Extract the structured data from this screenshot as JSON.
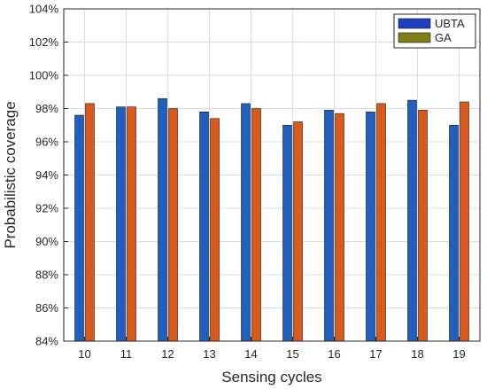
{
  "chart_data": {
    "type": "bar",
    "title": "",
    "xlabel": "Sensing cycles",
    "ylabel": "Probabilistic coverage",
    "categories": [
      "10",
      "11",
      "12",
      "13",
      "14",
      "15",
      "16",
      "17",
      "18",
      "19"
    ],
    "series": [
      {
        "name": "UBTA",
        "values": [
          97.6,
          98.1,
          98.6,
          97.8,
          98.3,
          97.0,
          97.9,
          97.8,
          98.5,
          97.0
        ],
        "color": "#1f5fbf"
      },
      {
        "name": "GA",
        "values": [
          98.3,
          98.1,
          98.0,
          97.4,
          98.0,
          97.2,
          97.7,
          98.3,
          97.9,
          98.4
        ],
        "color": "#d95a1a"
      }
    ],
    "ylim": [
      84,
      104
    ],
    "yticks": [
      "84%",
      "86%",
      "88%",
      "90%",
      "92%",
      "94%",
      "96%",
      "98%",
      "100%",
      "102%",
      "104%"
    ],
    "grid": true,
    "legend_position": "top-right",
    "legend_swatch_colors": {
      "UBTA": "#1f3fbf",
      "GA": "#7f7f1a"
    }
  }
}
